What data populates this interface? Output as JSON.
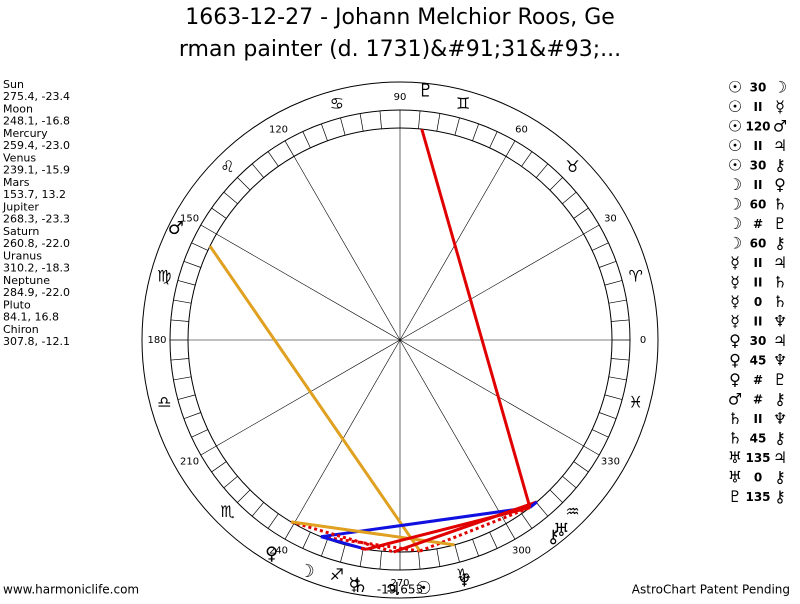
{
  "header": {
    "title_line1": "1663-12-27 - Johann Melchior Roos, Ge",
    "title_line2": "rman painter (d. 1731)&#91;31&#93;..."
  },
  "footer": {
    "left": "www.harmoniclife.com",
    "right": "AstroChart Patent Pending",
    "center": "-19,653"
  },
  "degree_labels": [
    0,
    30,
    60,
    90,
    120,
    150,
    180,
    210,
    240,
    270,
    300,
    330
  ],
  "signs": [
    "♈",
    "♉",
    "♊",
    "♋",
    "♌",
    "♍",
    "♎",
    "♏",
    "♐",
    "♑",
    "♒",
    "♓"
  ],
  "planets": [
    {
      "name": "Sun",
      "glyph": "☉",
      "position": "275.4, -23.4",
      "lon": 275.4
    },
    {
      "name": "Moon",
      "glyph": "☽",
      "position": "248.1, -16.8",
      "lon": 248.1
    },
    {
      "name": "Mercury",
      "glyph": "☿",
      "position": "259.4, -23.0",
      "lon": 259.4
    },
    {
      "name": "Venus",
      "glyph": "♀",
      "position": "239.1, -15.9",
      "lon": 239.1
    },
    {
      "name": "Mars",
      "glyph": "♂",
      "position": "153.7, 13.2",
      "lon": 153.7
    },
    {
      "name": "Jupiter",
      "glyph": "♃",
      "position": "268.3, -23.3",
      "lon": 268.3
    },
    {
      "name": "Saturn",
      "glyph": "♄",
      "position": "260.8, -22.0",
      "lon": 260.8
    },
    {
      "name": "Uranus",
      "glyph": "♅",
      "position": "310.2, -18.3",
      "lon": 310.2
    },
    {
      "name": "Neptune",
      "glyph": "♆",
      "position": "284.9, -22.0",
      "lon": 284.9
    },
    {
      "name": "Pluto",
      "glyph": "♇",
      "position": "84.1, 16.8",
      "lon": 84.1
    },
    {
      "name": "Chiron",
      "glyph": "⚷",
      "position": "307.8, -12.1",
      "lon": 307.8
    }
  ],
  "aspects": [
    {
      "from": 0,
      "label": "30",
      "to": 1,
      "color": "#e00000",
      "dashed": true
    },
    {
      "from": 0,
      "label": "II",
      "to": 2
    },
    {
      "from": 0,
      "label": "120",
      "to": 4,
      "color": "#e0a020",
      "dashed": false
    },
    {
      "from": 0,
      "label": "II",
      "to": 5
    },
    {
      "from": 0,
      "label": "30",
      "to": 10,
      "color": "#e00000",
      "dashed": true
    },
    {
      "from": 1,
      "label": "II",
      "to": 3
    },
    {
      "from": 1,
      "label": "60",
      "to": 6,
      "color": "#1010e0",
      "dashed": false
    },
    {
      "from": 1,
      "label": "#",
      "to": 9
    },
    {
      "from": 1,
      "label": "60",
      "to": 10,
      "color": "#1010e0",
      "dashed": false
    },
    {
      "from": 2,
      "label": "II",
      "to": 5
    },
    {
      "from": 2,
      "label": "II",
      "to": 6
    },
    {
      "from": 2,
      "label": "0",
      "to": 6,
      "color": "#e00000",
      "dashed": false
    },
    {
      "from": 2,
      "label": "II",
      "to": 8
    },
    {
      "from": 3,
      "label": "30",
      "to": 5,
      "color": "#e00000",
      "dashed": true
    },
    {
      "from": 3,
      "label": "45",
      "to": 8,
      "color": "#e0a020",
      "dashed": false
    },
    {
      "from": 3,
      "label": "#",
      "to": 9
    },
    {
      "from": 4,
      "label": "#",
      "to": 10
    },
    {
      "from": 6,
      "label": "II",
      "to": 8
    },
    {
      "from": 6,
      "label": "45",
      "to": 10,
      "color": "#e00000",
      "dashed": false
    },
    {
      "from": 7,
      "label": "135",
      "to": 5,
      "color": "#e00000",
      "dashed": false
    },
    {
      "from": 7,
      "label": "0",
      "to": 10,
      "color": "#1010e0",
      "dashed": false
    },
    {
      "from": 9,
      "label": "135",
      "to": 10,
      "color": "#e00000",
      "dashed": false
    }
  ]
}
